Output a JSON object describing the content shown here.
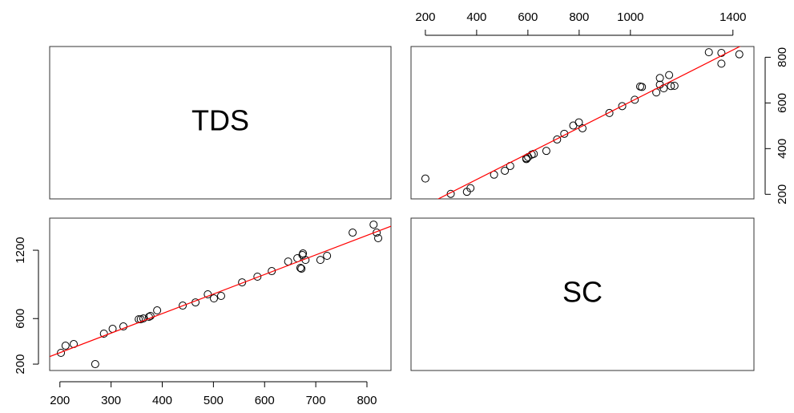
{
  "chart_data": [
    {
      "type": "text",
      "title": "TDS"
    },
    {
      "type": "scatter",
      "x_axis_side": "top",
      "y_axis_side": "right",
      "color": "#000000",
      "fit_color": "#ff0000",
      "x": [
        299,
        362,
        376,
        200,
        468,
        510,
        531,
        594,
        594,
        601,
        615,
        623,
        672,
        714,
        742,
        813,
        777,
        799,
        918,
        968,
        1017,
        1101,
        1130,
        1158,
        1045,
        1038,
        1172,
        1115,
        1115,
        1151,
        1355,
        1425,
        1355,
        1306
      ],
      "y": [
        202,
        211,
        227,
        269,
        286,
        303,
        324,
        354,
        358,
        363,
        374,
        377,
        390,
        440,
        465,
        489,
        501,
        515,
        556,
        586,
        614,
        646,
        664,
        674,
        670,
        672,
        675,
        680,
        709,
        722,
        772,
        813,
        819,
        822
      ],
      "xlim": [
        144,
        1482
      ],
      "ylim": [
        180,
        847
      ],
      "xticks": [
        200,
        400,
        600,
        800,
        1000,
        1400
      ],
      "yticks": [
        200,
        400,
        600,
        800
      ]
    },
    {
      "type": "scatter",
      "x_axis_side": "bottom",
      "y_axis_side": "left",
      "color": "#000000",
      "fit_color": "#ff0000",
      "x": [
        202,
        211,
        227,
        269,
        286,
        303,
        324,
        354,
        358,
        363,
        374,
        377,
        390,
        440,
        465,
        489,
        501,
        515,
        556,
        586,
        614,
        646,
        664,
        674,
        670,
        672,
        675,
        680,
        709,
        722,
        772,
        813,
        819,
        822
      ],
      "y": [
        299,
        362,
        376,
        200,
        468,
        510,
        531,
        594,
        594,
        601,
        615,
        623,
        672,
        714,
        742,
        813,
        777,
        799,
        918,
        968,
        1017,
        1101,
        1130,
        1158,
        1045,
        1038,
        1172,
        1115,
        1115,
        1151,
        1355,
        1425,
        1355,
        1306
      ],
      "xlim": [
        180,
        847
      ],
      "ylim": [
        144,
        1482
      ],
      "xticks": [
        200,
        300,
        400,
        500,
        600,
        700,
        800
      ],
      "yticks": [
        200,
        600,
        1200
      ]
    },
    {
      "type": "text",
      "title": "SC"
    }
  ]
}
